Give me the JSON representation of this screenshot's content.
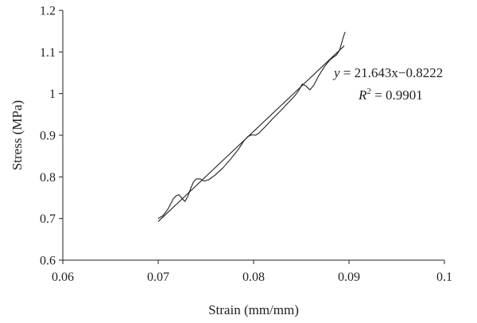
{
  "chart_data": {
    "type": "line",
    "title": "",
    "xlabel": "Strain (mm/mm)",
    "ylabel": "Stress (MPa)",
    "xlim": [
      0.06,
      0.1
    ],
    "ylim": [
      0.6,
      1.2
    ],
    "x_ticks": [
      "0.06",
      "0.07",
      "0.08",
      "0.09",
      "0.1"
    ],
    "y_ticks": [
      "0.6",
      "0.7",
      "0.8",
      "0.9",
      "1",
      "1.1",
      "1.2"
    ],
    "grid": false,
    "legend": "none",
    "series": [
      {
        "type": "line",
        "points": [
          [
            0.07,
            0.7
          ],
          [
            0.0705,
            0.707
          ],
          [
            0.071,
            0.722
          ],
          [
            0.0713,
            0.735
          ],
          [
            0.0716,
            0.748
          ],
          [
            0.0719,
            0.755
          ],
          [
            0.0722,
            0.757
          ],
          [
            0.0725,
            0.748
          ],
          [
            0.0728,
            0.741
          ],
          [
            0.0731,
            0.753
          ],
          [
            0.0734,
            0.772
          ],
          [
            0.0737,
            0.788
          ],
          [
            0.074,
            0.795
          ],
          [
            0.0744,
            0.795
          ],
          [
            0.0748,
            0.79
          ],
          [
            0.0753,
            0.793
          ],
          [
            0.076,
            0.805
          ],
          [
            0.0768,
            0.822
          ],
          [
            0.0776,
            0.843
          ],
          [
            0.0784,
            0.866
          ],
          [
            0.079,
            0.887
          ],
          [
            0.0794,
            0.897
          ],
          [
            0.0798,
            0.901
          ],
          [
            0.0802,
            0.9
          ],
          [
            0.0806,
            0.906
          ],
          [
            0.0812,
            0.92
          ],
          [
            0.082,
            0.94
          ],
          [
            0.0828,
            0.958
          ],
          [
            0.0835,
            0.975
          ],
          [
            0.084,
            0.987
          ],
          [
            0.0844,
            0.997
          ],
          [
            0.0848,
            1.01
          ],
          [
            0.0851,
            1.023
          ],
          [
            0.0855,
            1.018
          ],
          [
            0.0859,
            1.009
          ],
          [
            0.0863,
            1.02
          ],
          [
            0.0868,
            1.042
          ],
          [
            0.0874,
            1.064
          ],
          [
            0.088,
            1.081
          ],
          [
            0.0884,
            1.088
          ],
          [
            0.0887,
            1.093
          ],
          [
            0.089,
            1.104
          ],
          [
            0.0892,
            1.119
          ],
          [
            0.0894,
            1.136
          ],
          [
            0.0896,
            1.148
          ]
        ]
      },
      {
        "type": "trendline",
        "slope": 21.643,
        "intercept": -0.8222,
        "x_range": [
          0.07,
          0.0895
        ]
      }
    ],
    "annotations": {
      "equation_y": "y",
      "equation_rest": " = 21.643x−0.8222",
      "r2_label": "R",
      "r2_sup": "2",
      "r2_value": " = 0.9901"
    }
  }
}
